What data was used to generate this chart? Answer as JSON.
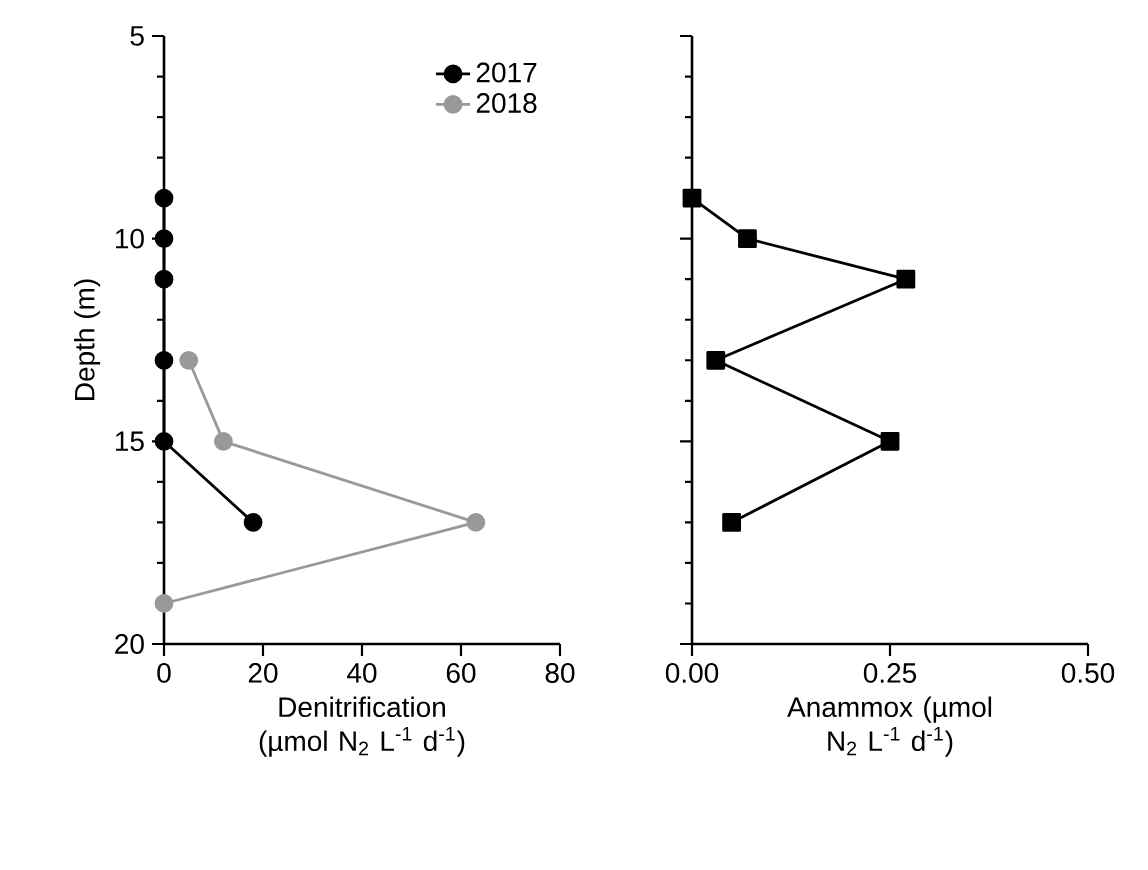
{
  "chart_data": [
    {
      "type": "line",
      "xlabel": "Denitrification (µmol N$_{2}$ L$^{-1}$ d$^{-1}$)",
      "ylabel": "Depth (m)",
      "xlim": [
        0,
        80
      ],
      "xticks": [
        0,
        20,
        40,
        60,
        80
      ],
      "ylim": [
        20,
        5
      ],
      "yticks": [
        5,
        10,
        15,
        20
      ],
      "marker": "circle",
      "legend": "top right",
      "grid": false,
      "series": [
        {
          "name": "2017",
          "color": "#000000",
          "x": [
            0,
            0,
            0,
            0,
            0,
            18
          ],
          "values": [
            9,
            10,
            11,
            13,
            15,
            17
          ]
        },
        {
          "name": "2018",
          "color": "#999999",
          "x": [
            5,
            12,
            63,
            0
          ],
          "values": [
            13,
            15,
            17,
            19
          ]
        }
      ]
    },
    {
      "type": "line",
      "xlabel": "Anammox (µmol N$_{2}$ L$^{-1}$ d$^{-1}$)",
      "xlim": [
        0,
        0.5
      ],
      "xticks": [
        {
          "value": 0,
          "label": "0.00"
        },
        {
          "value": 0.25,
          "label": "0.25"
        },
        {
          "value": 0.5,
          "label": "0.50"
        }
      ],
      "ylim": [
        20,
        5
      ],
      "yticks": [
        5,
        10,
        15,
        20
      ],
      "tick_labels": "x",
      "marker": "square",
      "grid": false,
      "series": [
        {
          "color": "#000000",
          "x": [
            0.0,
            0.07,
            0.27,
            0.03,
            0.25,
            0.05
          ],
          "values": [
            9,
            10,
            11,
            13,
            15,
            17
          ]
        }
      ]
    }
  ]
}
